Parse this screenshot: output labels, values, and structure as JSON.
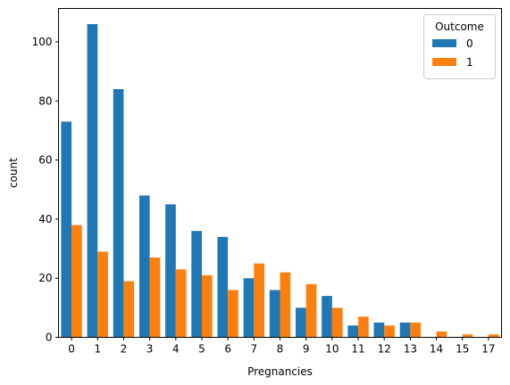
{
  "chart_data": {
    "type": "bar",
    "title": "",
    "xlabel": "Pregnancies",
    "ylabel": "count",
    "categories": [
      "0",
      "1",
      "2",
      "3",
      "4",
      "5",
      "6",
      "7",
      "8",
      "9",
      "10",
      "11",
      "12",
      "13",
      "14",
      "15",
      "17"
    ],
    "series": [
      {
        "name": "0",
        "color": "#1f77b4",
        "values": [
          73,
          106,
          84,
          48,
          45,
          36,
          34,
          20,
          16,
          10,
          14,
          4,
          5,
          5,
          0,
          0,
          0
        ]
      },
      {
        "name": "1",
        "color": "#ff7f0e",
        "values": [
          38,
          29,
          19,
          27,
          23,
          21,
          16,
          25,
          22,
          18,
          10,
          7,
          4,
          5,
          2,
          1,
          1
        ]
      }
    ],
    "ylim": [
      0,
      111.3
    ],
    "yticks": [
      0,
      20,
      40,
      60,
      80,
      100
    ],
    "grid": false,
    "legend": {
      "title": "Outcome",
      "placement": "top-right"
    }
  }
}
